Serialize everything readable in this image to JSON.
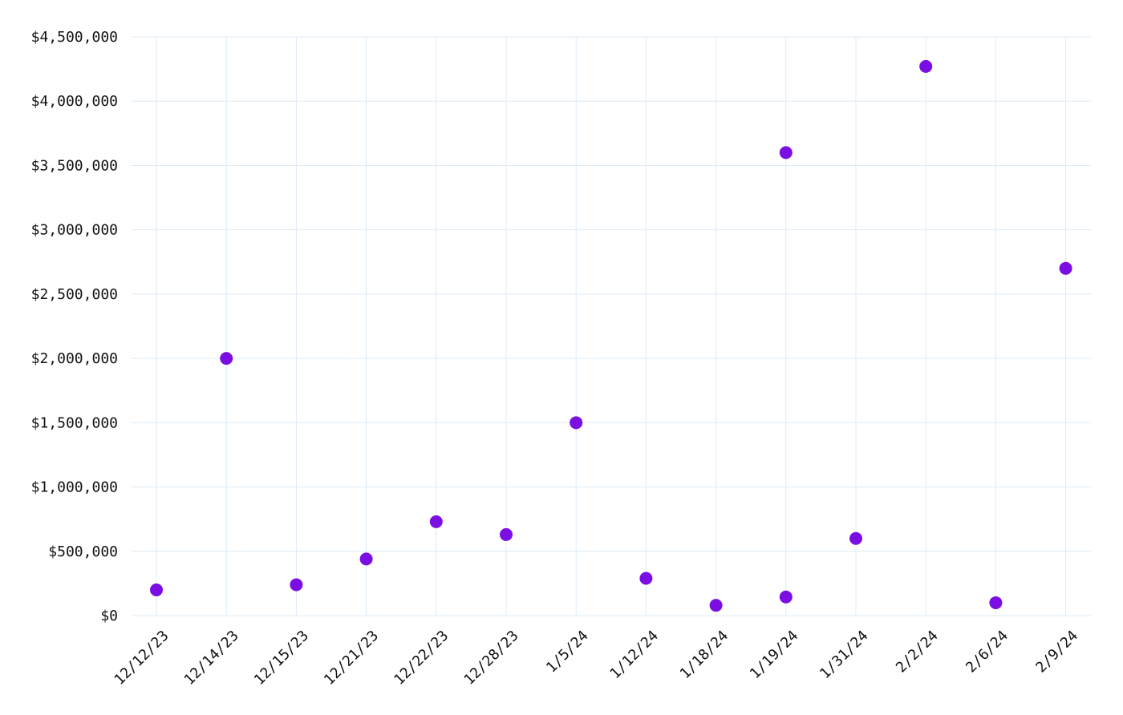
{
  "chart_data": {
    "type": "scatter",
    "title": "",
    "xlabel": "",
    "ylabel": "",
    "categories": [
      "12/12/23",
      "12/14/23",
      "12/15/23",
      "12/21/23",
      "12/22/23",
      "12/28/23",
      "1/5/24",
      "1/12/24",
      "1/18/24",
      "1/19/24",
      "1/31/24",
      "2/2/24",
      "2/6/24",
      "2/9/24"
    ],
    "points": [
      {
        "x": "12/12/23",
        "y": 200000
      },
      {
        "x": "12/14/23",
        "y": 2000000
      },
      {
        "x": "12/15/23",
        "y": 240000
      },
      {
        "x": "12/21/23",
        "y": 440000
      },
      {
        "x": "12/22/23",
        "y": 730000
      },
      {
        "x": "12/28/23",
        "y": 630000
      },
      {
        "x": "1/5/24",
        "y": 1500000
      },
      {
        "x": "1/12/24",
        "y": 290000
      },
      {
        "x": "1/18/24",
        "y": 80000
      },
      {
        "x": "1/19/24",
        "y": 3600000
      },
      {
        "x": "1/19/24",
        "y": 145000
      },
      {
        "x": "1/31/24",
        "y": 600000
      },
      {
        "x": "2/2/24",
        "y": 4270000
      },
      {
        "x": "2/6/24",
        "y": 100000
      },
      {
        "x": "2/9/24",
        "y": 2700000
      }
    ],
    "ylim": [
      0,
      4500000
    ],
    "yticks": [
      0,
      500000,
      1000000,
      1500000,
      2000000,
      2500000,
      3000000,
      3500000,
      4000000,
      4500000
    ],
    "ytick_labels": [
      "$0",
      "$500,000",
      "$1,000,000",
      "$1,500,000",
      "$2,000,000",
      "$2,500,000",
      "$3,000,000",
      "$3,500,000",
      "$4,000,000",
      "$4,500,000"
    ],
    "grid": true,
    "legend": "none",
    "colors": {
      "point": "#7b0fe3",
      "grid": "#dcebf7",
      "text": "#111111"
    }
  }
}
